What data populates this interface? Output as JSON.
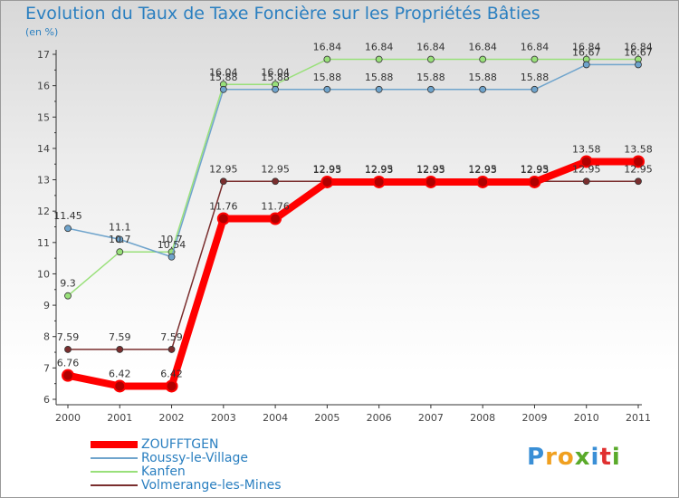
{
  "chart_data": {
    "type": "line",
    "title": "Evolution du Taux de Taxe Foncière sur les Propriétés Bâties",
    "subtitle": "(en %)",
    "xlabel": "",
    "ylabel": "",
    "categories": [
      "2000",
      "2001",
      "2002",
      "2003",
      "2004",
      "2005",
      "2006",
      "2007",
      "2008",
      "2009",
      "2010",
      "2011"
    ],
    "ylim": [
      6,
      17
    ],
    "yticks": [
      "6",
      "7",
      "8",
      "9",
      "10",
      "11",
      "12",
      "13",
      "14",
      "15",
      "16",
      "17"
    ],
    "series": [
      {
        "name": "ZOUFFTGEN",
        "color": "#ff0000",
        "values": [
          6.76,
          6.42,
          6.42,
          11.76,
          11.76,
          12.93,
          12.93,
          12.93,
          12.93,
          12.93,
          13.58,
          13.58
        ],
        "labels": [
          "6.76",
          "6.42",
          "6.42",
          "11.76",
          "11.76",
          "12.93",
          "12.93",
          "12.93",
          "12.93",
          "12.93",
          "13.58",
          "13.58"
        ]
      },
      {
        "name": "Roussy-le-Village",
        "color": "#6fa4cc",
        "values": [
          11.45,
          11.1,
          10.54,
          15.88,
          15.88,
          15.88,
          15.88,
          15.88,
          15.88,
          15.88,
          16.67,
          16.67
        ],
        "labels": [
          "11.45",
          "11.1",
          "10.54",
          "15.88",
          "15.88",
          "15.88",
          "15.88",
          "15.88",
          "15.88",
          "15.88",
          "16.67",
          "16.67"
        ]
      },
      {
        "name": "Kanfen",
        "color": "#99e07a",
        "values": [
          9.3,
          10.7,
          10.7,
          16.04,
          16.04,
          16.84,
          16.84,
          16.84,
          16.84,
          16.84,
          16.84,
          16.84
        ],
        "labels": [
          "9.3",
          "10.7",
          "10.7",
          "16.04",
          "16.04",
          "16.84",
          "16.84",
          "16.84",
          "16.84",
          "16.84",
          "16.84",
          "16.84"
        ]
      },
      {
        "name": "Volmerange-les-Mines",
        "color": "#7a2e2e",
        "values": [
          7.59,
          7.59,
          7.59,
          12.95,
          12.95,
          12.95,
          12.95,
          12.95,
          12.95,
          12.95,
          12.95,
          12.95
        ],
        "labels": [
          "7.59",
          "7.59",
          "7.59",
          "12.95",
          "12.95",
          "12.95",
          "12.95",
          "12.95",
          "12.95",
          "12.95",
          "12.95",
          "12.95"
        ]
      }
    ],
    "legend": "bottom-left",
    "grid": false
  },
  "logo": {
    "letters": [
      "P",
      "r",
      "o",
      "x",
      "i",
      "t",
      "i"
    ],
    "colors": [
      "#3a8fd6",
      "#f0a020",
      "#f0a020",
      "#5aaa2a",
      "#3a8fd6",
      "#e03030",
      "#5aaa2a"
    ]
  }
}
